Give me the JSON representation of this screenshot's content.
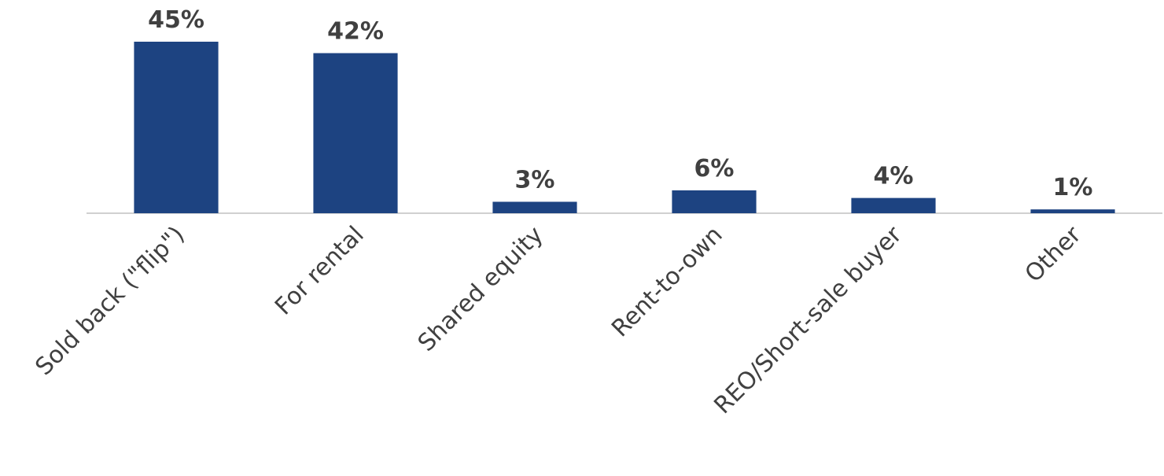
{
  "chart_data": {
    "type": "bar",
    "categories": [
      "Sold back (\"flip\")",
      "For rental",
      "Shared equity",
      "Rent-to-own",
      "REO/Short-sale buyer",
      "Other"
    ],
    "values": [
      45,
      42,
      3,
      6,
      4,
      1
    ],
    "value_labels": [
      "45%",
      "42%",
      "3%",
      "6%",
      "4%",
      "1%"
    ],
    "color": "#1d4381"
  }
}
